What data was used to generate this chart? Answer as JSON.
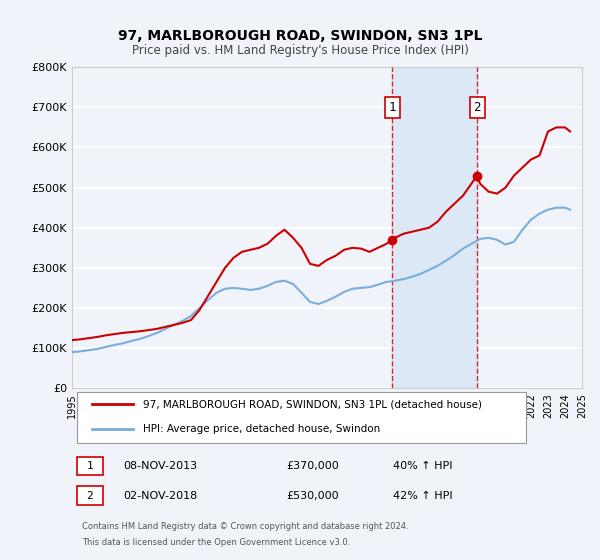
{
  "title": "97, MARLBOROUGH ROAD, SWINDON, SN3 1PL",
  "subtitle": "Price paid vs. HM Land Registry's House Price Index (HPI)",
  "ylabel": "",
  "xlabel": "",
  "xlim": [
    1995,
    2025
  ],
  "ylim": [
    0,
    800000
  ],
  "yticks": [
    0,
    100000,
    200000,
    300000,
    400000,
    500000,
    600000,
    700000,
    800000
  ],
  "ytick_labels": [
    "£0",
    "£100K",
    "£200K",
    "£300K",
    "£400K",
    "£500K",
    "£600K",
    "£700K",
    "£800K"
  ],
  "xticks": [
    1995,
    1996,
    1997,
    1998,
    1999,
    2000,
    2001,
    2002,
    2003,
    2004,
    2005,
    2006,
    2007,
    2008,
    2009,
    2010,
    2011,
    2012,
    2013,
    2014,
    2015,
    2016,
    2017,
    2018,
    2019,
    2020,
    2021,
    2022,
    2023,
    2024,
    2025
  ],
  "bg_color": "#f0f4fa",
  "plot_bg_color": "#f0f4fa",
  "grid_color": "#ffffff",
  "red_line_color": "#cc0000",
  "blue_line_color": "#7aaddc",
  "shade_color": "#dce8f5",
  "marker1_x": 2013.85,
  "marker1_y": 370000,
  "marker2_x": 2018.83,
  "marker2_y": 530000,
  "vline1_x": 2013.85,
  "vline2_x": 2018.83,
  "legend_label1": "97, MARLBOROUGH ROAD, SWINDON, SN3 1PL (detached house)",
  "legend_label2": "HPI: Average price, detached house, Swindon",
  "annotation1_label": "1",
  "annotation2_label": "2",
  "ann1_x_chart": 2013.85,
  "ann1_y_chart": 700000,
  "ann2_x_chart": 2018.83,
  "ann2_y_chart": 700000,
  "table_row1": [
    "1",
    "08-NOV-2013",
    "£370,000",
    "40% ↑ HPI"
  ],
  "table_row2": [
    "2",
    "02-NOV-2018",
    "£530,000",
    "42% ↑ HPI"
  ],
  "footer1": "Contains HM Land Registry data © Crown copyright and database right 2024.",
  "footer2": "This data is licensed under the Open Government Licence v3.0.",
  "red_x": [
    1995.0,
    1995.5,
    1996.0,
    1996.5,
    1997.0,
    1997.5,
    1998.0,
    1998.5,
    1999.0,
    1999.5,
    2000.0,
    2000.5,
    2001.0,
    2001.5,
    2002.0,
    2002.5,
    2003.0,
    2003.5,
    2004.0,
    2004.5,
    2005.0,
    2005.5,
    2006.0,
    2006.5,
    2007.0,
    2007.5,
    2008.0,
    2008.5,
    2009.0,
    2009.5,
    2010.0,
    2010.5,
    2011.0,
    2011.5,
    2012.0,
    2012.5,
    2013.0,
    2013.5,
    2013.85,
    2014.0,
    2014.5,
    2015.0,
    2015.5,
    2016.0,
    2016.5,
    2017.0,
    2017.5,
    2018.0,
    2018.83,
    2019.0,
    2019.5,
    2020.0,
    2020.5,
    2021.0,
    2021.5,
    2022.0,
    2022.5,
    2023.0,
    2023.5,
    2024.0,
    2024.3
  ],
  "red_y": [
    120000,
    122000,
    125000,
    128000,
    132000,
    135000,
    138000,
    140000,
    142000,
    145000,
    148000,
    153000,
    158000,
    163000,
    170000,
    195000,
    230000,
    265000,
    300000,
    325000,
    340000,
    345000,
    350000,
    360000,
    380000,
    395000,
    375000,
    350000,
    310000,
    305000,
    320000,
    330000,
    345000,
    350000,
    348000,
    340000,
    350000,
    360000,
    370000,
    375000,
    385000,
    390000,
    395000,
    400000,
    415000,
    440000,
    460000,
    480000,
    530000,
    510000,
    490000,
    485000,
    500000,
    530000,
    550000,
    570000,
    580000,
    640000,
    650000,
    650000,
    640000
  ],
  "blue_x": [
    1995.0,
    1995.5,
    1996.0,
    1996.5,
    1997.0,
    1997.5,
    1998.0,
    1998.5,
    1999.0,
    1999.5,
    2000.0,
    2000.5,
    2001.0,
    2001.5,
    2002.0,
    2002.5,
    2003.0,
    2003.5,
    2004.0,
    2004.5,
    2005.0,
    2005.5,
    2006.0,
    2006.5,
    2007.0,
    2007.5,
    2008.0,
    2008.5,
    2009.0,
    2009.5,
    2010.0,
    2010.5,
    2011.0,
    2011.5,
    2012.0,
    2012.5,
    2013.0,
    2013.5,
    2014.0,
    2014.5,
    2015.0,
    2015.5,
    2016.0,
    2016.5,
    2017.0,
    2017.5,
    2018.0,
    2018.5,
    2019.0,
    2019.5,
    2020.0,
    2020.5,
    2021.0,
    2021.5,
    2022.0,
    2022.5,
    2023.0,
    2023.5,
    2024.0,
    2024.3
  ],
  "blue_y": [
    90000,
    92000,
    95000,
    98000,
    103000,
    108000,
    112000,
    118000,
    123000,
    130000,
    138000,
    148000,
    158000,
    168000,
    180000,
    200000,
    220000,
    238000,
    248000,
    250000,
    248000,
    245000,
    248000,
    255000,
    265000,
    268000,
    260000,
    238000,
    215000,
    210000,
    218000,
    228000,
    240000,
    248000,
    250000,
    252000,
    258000,
    265000,
    268000,
    272000,
    278000,
    285000,
    295000,
    305000,
    318000,
    332000,
    348000,
    360000,
    372000,
    375000,
    370000,
    358000,
    365000,
    395000,
    420000,
    435000,
    445000,
    450000,
    450000,
    445000
  ]
}
